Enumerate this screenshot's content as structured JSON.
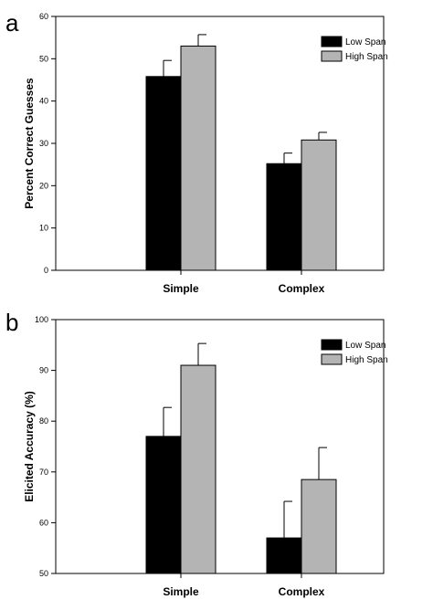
{
  "chart_data": [
    {
      "panel_letter": "a",
      "type": "bar",
      "categories": [
        "Simple",
        "Complex"
      ],
      "series": [
        {
          "name": "Low Span",
          "color": "#000000",
          "values": [
            45.8,
            25.2
          ],
          "error": [
            3.8,
            2.5
          ]
        },
        {
          "name": "High Span",
          "color": "#b4b4b4",
          "values": [
            53.0,
            30.8
          ],
          "error": [
            2.7,
            1.8
          ]
        }
      ],
      "ylabel": "Percent Correct Guesses",
      "ylim": [
        0,
        60
      ],
      "yticks": [
        0,
        10,
        20,
        30,
        40,
        50,
        60
      ],
      "legend_position": "top-right",
      "grid": false
    },
    {
      "panel_letter": "b",
      "type": "bar",
      "categories": [
        "Simple",
        "Complex"
      ],
      "series": [
        {
          "name": "Low Span",
          "color": "#000000",
          "values": [
            77.0,
            57.0
          ],
          "error": [
            5.7,
            7.2
          ]
        },
        {
          "name": "High Span",
          "color": "#b4b4b4",
          "values": [
            91.0,
            68.5
          ],
          "error": [
            4.3,
            6.3
          ]
        }
      ],
      "ylabel": "Elicited Accuracy (%)",
      "ylim": [
        50,
        100
      ],
      "yticks": [
        50,
        60,
        70,
        80,
        90,
        100
      ],
      "legend_position": "top-right",
      "grid": false
    }
  ]
}
